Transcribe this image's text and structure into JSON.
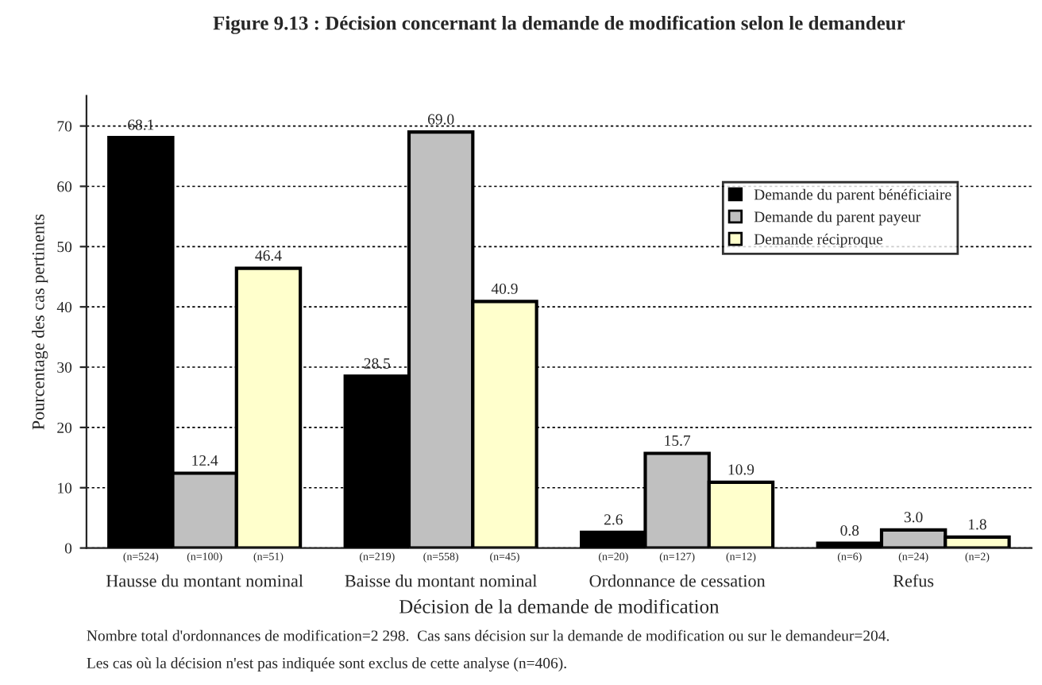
{
  "chart_data": {
    "type": "bar",
    "title": "Figure 9.13 : Décision concernant la demande de modification selon le demandeur",
    "xlabel": "Décision de la demande de modification",
    "ylabel": "Pourcentage des cas pertinents",
    "categories": [
      "Hausse du montant nominal",
      "Baisse du montant nominal",
      "Ordonnance de cessation",
      "Refus"
    ],
    "series": [
      {
        "name": "Demande du parent bénéficiaire",
        "color": "#000000",
        "values": [
          68.1,
          28.5,
          2.6,
          0.8
        ],
        "value_labels": [
          "68.1",
          "28.5",
          "2.6",
          "0.8"
        ]
      },
      {
        "name": "Demande du parent payeur",
        "color": "#c0c0c0",
        "values": [
          12.4,
          69.0,
          15.7,
          3.0
        ],
        "value_labels": [
          "12.4",
          "69.0",
          "15.7",
          "3.0"
        ]
      },
      {
        "name": "Demande réciproque",
        "color": "#ffffcc",
        "values": [
          46.4,
          40.9,
          10.9,
          1.8
        ],
        "value_labels": [
          "46.4",
          "40.9",
          "10.9",
          "1.8"
        ]
      }
    ],
    "ylim": [
      0,
      75
    ],
    "yticks": [
      0,
      10,
      20,
      30,
      40,
      50,
      60,
      70
    ],
    "grid": "y",
    "legend": "right",
    "annotations": [
      "(n=524)",
      "(n=100)",
      "(n=51)",
      "(n=219)",
      "(n=558)",
      "(n=45)",
      "(n=20)",
      "(n=127)",
      "(n=12)",
      "(n=6)",
      "(n=24)",
      "(n=2)",
      "Nombre total d'ordonnances de modification=2 298.  Cas sans décision sur la demande de modification ou sur le demandeur=204.",
      "Les cas où la décision n'est pas indiquée sont exclus de cette analyse (n=406)."
    ]
  }
}
